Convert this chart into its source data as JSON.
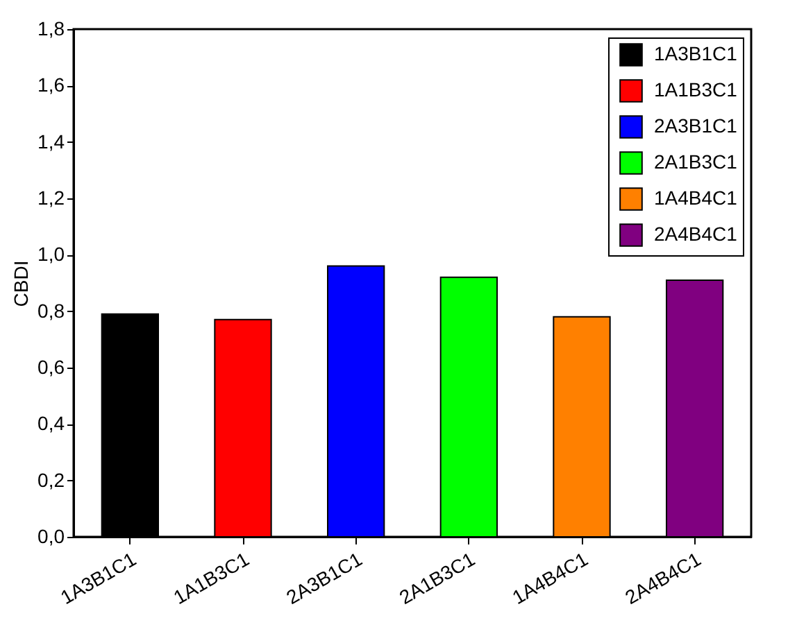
{
  "chart_data": {
    "type": "bar",
    "ylabel": "CBDI",
    "categories": [
      "1A3B1C1",
      "1A1B3C1",
      "2A3B1C1",
      "2A1B3C1",
      "1A4B4C1",
      "2A4B4C1"
    ],
    "series": [
      {
        "name": "1A3B1C1",
        "color": "#000000",
        "values": [
          0.79,
          null,
          null,
          null,
          null,
          null
        ]
      },
      {
        "name": "1A1B3C1",
        "color": "#ff0000",
        "values": [
          null,
          0.77,
          null,
          null,
          null,
          null
        ]
      },
      {
        "name": "2A3B1C1",
        "color": "#0000ff",
        "values": [
          null,
          null,
          0.96,
          null,
          null,
          null
        ]
      },
      {
        "name": "2A1B3C1",
        "color": "#00ff00",
        "values": [
          null,
          null,
          null,
          0.92,
          null,
          null
        ]
      },
      {
        "name": "1A4B4C1",
        "color": "#ff8000",
        "values": [
          null,
          null,
          null,
          null,
          0.78,
          null
        ]
      },
      {
        "name": "2A4B4C1",
        "color": "#800080",
        "values": [
          null,
          null,
          null,
          null,
          null,
          0.91
        ]
      }
    ],
    "ylim": [
      0,
      1.8
    ],
    "yticks": [
      {
        "value": 0,
        "label": "0,0"
      },
      {
        "value": 0.2,
        "label": "0,2"
      },
      {
        "value": 0.4,
        "label": "0,4"
      },
      {
        "value": 0.6,
        "label": "0,6"
      },
      {
        "value": 0.8,
        "label": "0,8"
      },
      {
        "value": 1.0,
        "label": "1,0"
      },
      {
        "value": 1.2,
        "label": "1,2"
      },
      {
        "value": 1.4,
        "label": "1,4"
      },
      {
        "value": 1.6,
        "label": "1,6"
      },
      {
        "value": 1.8,
        "label": "1,8"
      }
    ],
    "legend": "top right"
  }
}
